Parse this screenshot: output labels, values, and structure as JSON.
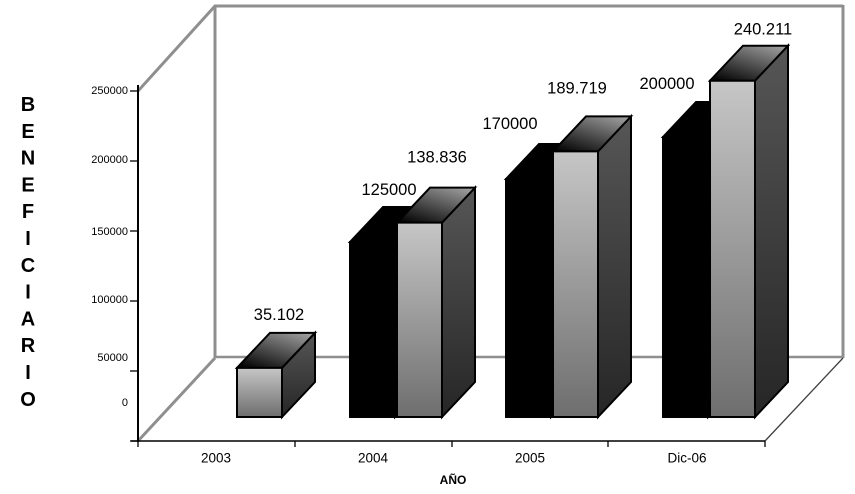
{
  "chart_data": {
    "type": "bar",
    "variant": "3d-column",
    "title": "",
    "xlabel": "AÑO",
    "ylabel": "BENEFICIARIO",
    "categories": [
      "2003",
      "2004",
      "2005",
      "Dic-06"
    ],
    "series": [
      {
        "id": "serie-1",
        "color": "#000000",
        "values": [
          null,
          125000,
          170000,
          200000
        ],
        "labels": [
          "",
          "125000",
          "170000",
          "200000"
        ]
      },
      {
        "id": "serie-2",
        "color": "#b5b5b5",
        "values": [
          35102,
          138836,
          189719,
          240211
        ],
        "labels": [
          "35.102",
          "138.836",
          "189.719",
          "240.211"
        ]
      }
    ],
    "ylim": [
      0,
      250000
    ],
    "yticks": [
      "250000",
      "200000",
      "150000",
      "100000",
      "50000",
      "0"
    ],
    "grid": false,
    "legend": false,
    "background": "#ffffff",
    "colors": {
      "bar_black": "#000000",
      "bar_gray_front_top": "#c6c6c6",
      "bar_gray_front_bottom": "#6e6e6e",
      "bar_gray_side_top": "#565656",
      "bar_gray_side_bottom": "#262626",
      "bar_gray_topface_front": "#060606",
      "bar_gray_topface_back": "#9c9c9c",
      "wall_edge": "#8f8f8f",
      "axis": "#000000"
    }
  }
}
